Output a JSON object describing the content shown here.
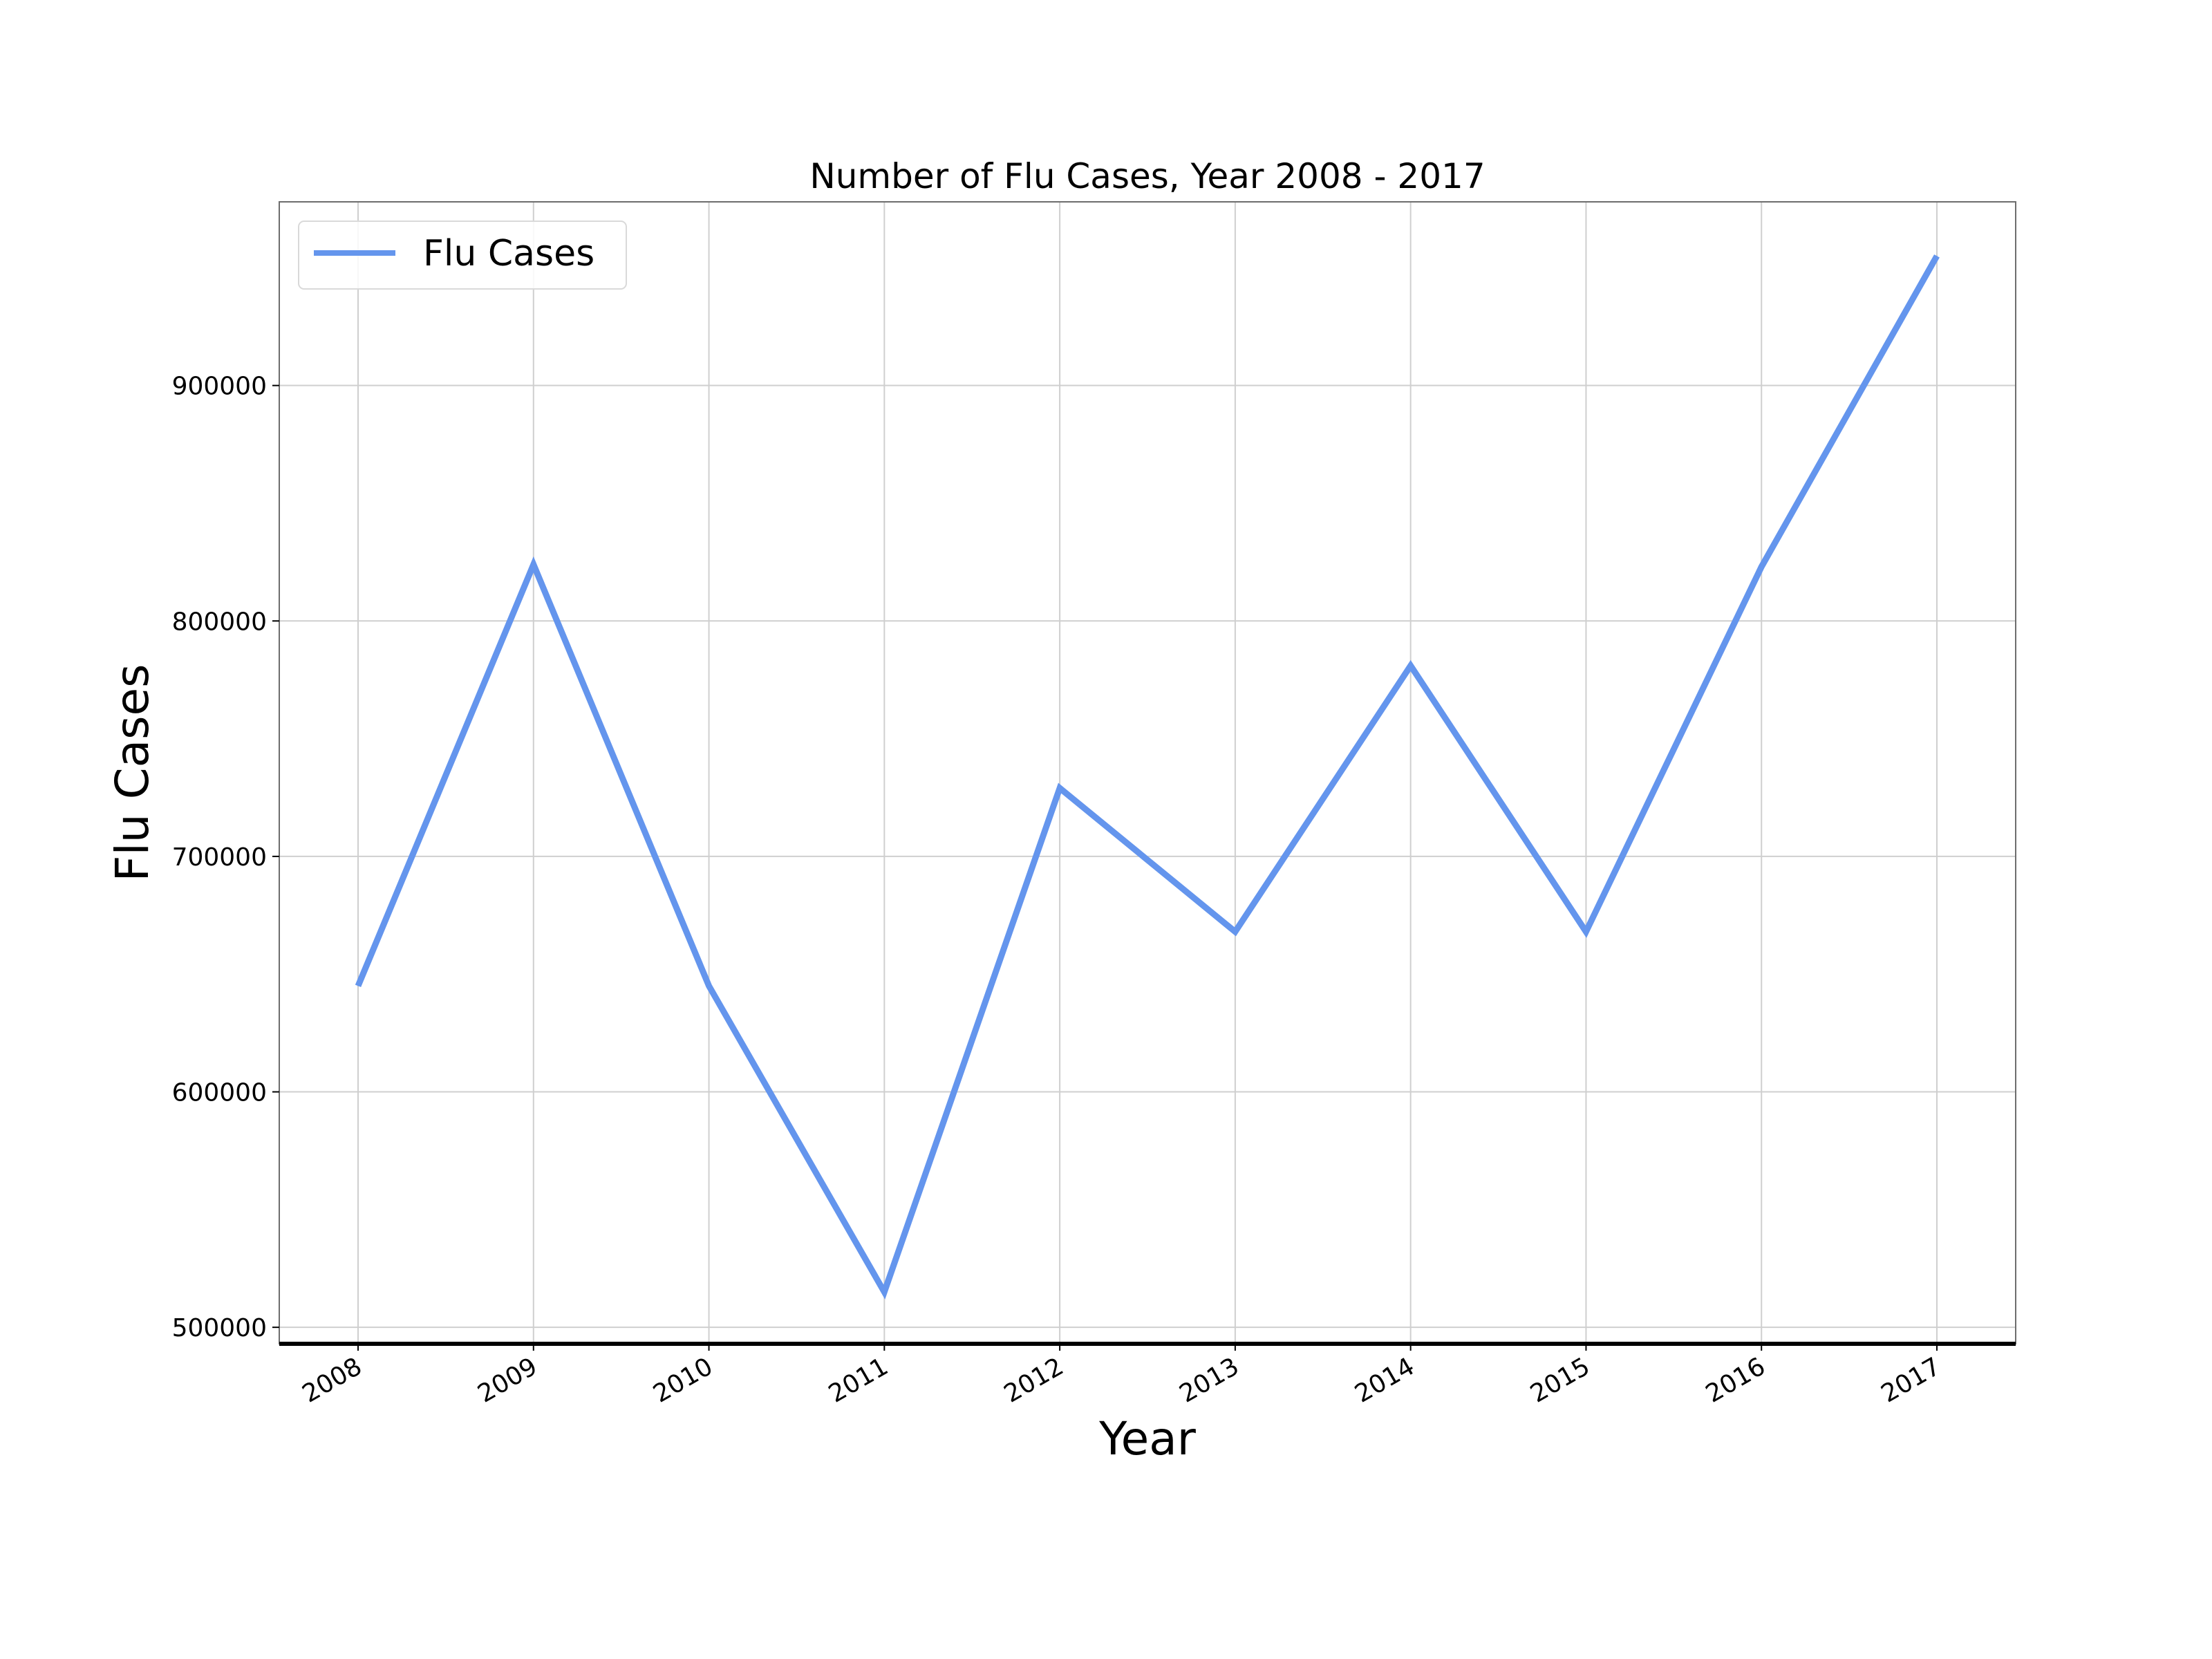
{
  "chart_data": {
    "type": "line",
    "title": "Number of Flu Cases, Year 2008 - 2017",
    "xlabel": "Year",
    "ylabel": "Flu Cases",
    "categories": [
      "2008",
      "2009",
      "2010",
      "2011",
      "2012",
      "2013",
      "2014",
      "2015",
      "2016",
      "2017"
    ],
    "y_ticks": [
      "500000",
      "600000",
      "700000",
      "800000",
      "900000"
    ],
    "ylim": [
      493000,
      978000
    ],
    "grid": true,
    "legend_position": "upper-left",
    "series": [
      {
        "name": "Flu Cases",
        "color": "#6495ED",
        "values": [
          645000,
          824000,
          645000,
          515000,
          729000,
          668000,
          781000,
          668000,
          823000,
          955000
        ]
      }
    ]
  }
}
